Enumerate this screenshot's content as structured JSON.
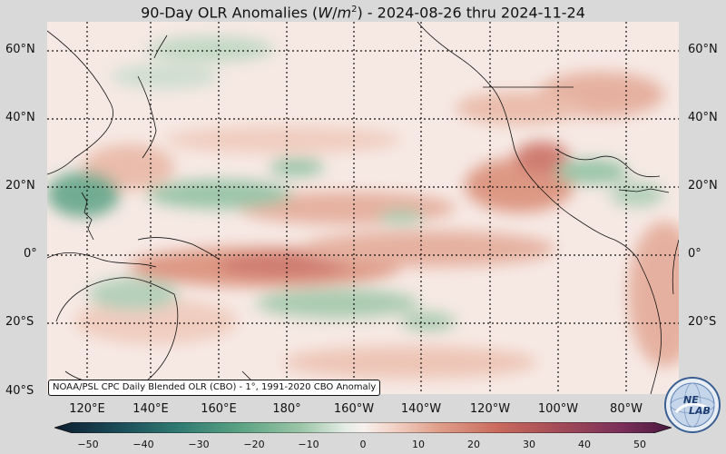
{
  "title": {
    "prefix": "90-Day OLR Anomalies (",
    "unit_w": "W",
    "unit_slash": "/",
    "unit_m": "m",
    "unit_exp": "2",
    "suffix": ") - 2024-08-26 thru 2024-11-24"
  },
  "lat_labels": [
    "60°N",
    "40°N",
    "20°N",
    "0°",
    "20°S",
    "40°S"
  ],
  "lon_labels": [
    "120°E",
    "140°E",
    "160°E",
    "180°",
    "160°W",
    "140°W",
    "120°W",
    "100°W",
    "80°W"
  ],
  "source_note": "NOAA/PSL CPC Daily Blended OLR (CBO) - 1°, 1991-2020 CBO Anomaly",
  "colorbar": {
    "ticks": [
      "−50",
      "−40",
      "−30",
      "−20",
      "−10",
      "0",
      "10",
      "20",
      "30",
      "40",
      "50"
    ],
    "min": -50,
    "max": 50,
    "negative_colors": [
      "#0d1d2e",
      "#1b4a57",
      "#2f7a72",
      "#5aa283",
      "#9cc6a7",
      "#d8e6da"
    ],
    "neutral_color": "#f7ece9",
    "positive_colors": [
      "#f2d2c5",
      "#e0a08c",
      "#c96a5d",
      "#a24a57",
      "#7a2f5a",
      "#4a1840"
    ]
  },
  "logo": {
    "text_top": "NE",
    "text_bottom": "LAB"
  },
  "colors": {
    "positive_anomaly": "#d98a73",
    "strong_positive_anomaly": "#c96a5d",
    "negative_anomaly": "#6fae8e",
    "background": "#f7ece9"
  }
}
